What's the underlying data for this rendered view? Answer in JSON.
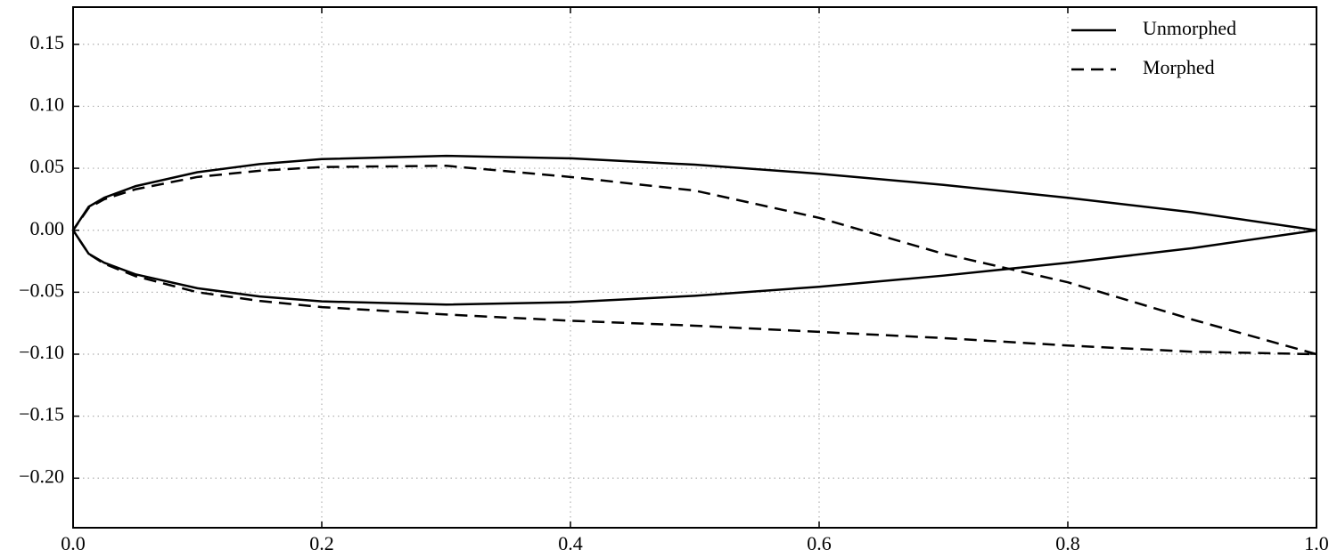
{
  "chart_data": {
    "type": "line",
    "series": [
      {
        "name": "Unmorphed",
        "color": "#000000",
        "dash": false,
        "x": [
          1.0,
          0.9,
          0.8,
          0.7,
          0.6,
          0.5,
          0.4,
          0.3,
          0.2,
          0.15,
          0.1,
          0.05,
          0.025,
          0.0125,
          0.0,
          0.0125,
          0.025,
          0.05,
          0.1,
          0.15,
          0.2,
          0.3,
          0.4,
          0.5,
          0.6,
          0.7,
          0.8,
          0.9,
          1.0
        ],
        "values": [
          0.0,
          0.0145,
          0.0262,
          0.0366,
          0.0456,
          0.0529,
          0.058,
          0.06,
          0.0574,
          0.0534,
          0.0468,
          0.0355,
          0.0262,
          0.0189,
          0.0,
          -0.0189,
          -0.0262,
          -0.0355,
          -0.0468,
          -0.0534,
          -0.0574,
          -0.06,
          -0.058,
          -0.0529,
          -0.0456,
          -0.0366,
          -0.0262,
          -0.0145,
          0.0
        ]
      },
      {
        "name": "Morphed",
        "color": "#000000",
        "dash": true,
        "x": [
          1.0,
          0.9,
          0.8,
          0.7,
          0.6,
          0.5,
          0.4,
          0.3,
          0.2,
          0.15,
          0.1,
          0.05,
          0.025,
          0.0125,
          0.0,
          0.0125,
          0.025,
          0.05,
          0.1,
          0.15,
          0.2,
          0.3,
          0.4,
          0.5,
          0.6,
          0.7,
          0.8,
          0.9,
          1.0
        ],
        "values": [
          -0.1,
          -0.072,
          -0.042,
          -0.019,
          0.01,
          0.032,
          0.043,
          0.052,
          0.051,
          0.048,
          0.043,
          0.033,
          0.025,
          0.018,
          0.0,
          -0.019,
          -0.027,
          -0.037,
          -0.05,
          -0.057,
          -0.062,
          -0.068,
          -0.073,
          -0.077,
          -0.082,
          -0.087,
          -0.093,
          -0.098,
          -0.1
        ]
      }
    ],
    "xlim": [
      0,
      1
    ],
    "ylim": [
      -0.24,
      0.18
    ],
    "xticks": [
      {
        "value": 0,
        "label": "0.0"
      },
      0.2,
      0.4,
      0.6,
      0.8,
      {
        "value": 1,
        "label": "1.0"
      }
    ],
    "yticks": [
      0.15,
      {
        "value": 0.1,
        "label": "0.10"
      },
      0.05,
      {
        "value": 0,
        "label": "0.00"
      },
      {
        "value": -0.05,
        "label": "−0.05"
      },
      {
        "value": -0.1,
        "label": "−0.10"
      },
      {
        "value": -0.15,
        "label": "−0.15"
      },
      {
        "value": -0.2,
        "label": "−0.20"
      }
    ],
    "grid": true,
    "legend": "upper right"
  }
}
